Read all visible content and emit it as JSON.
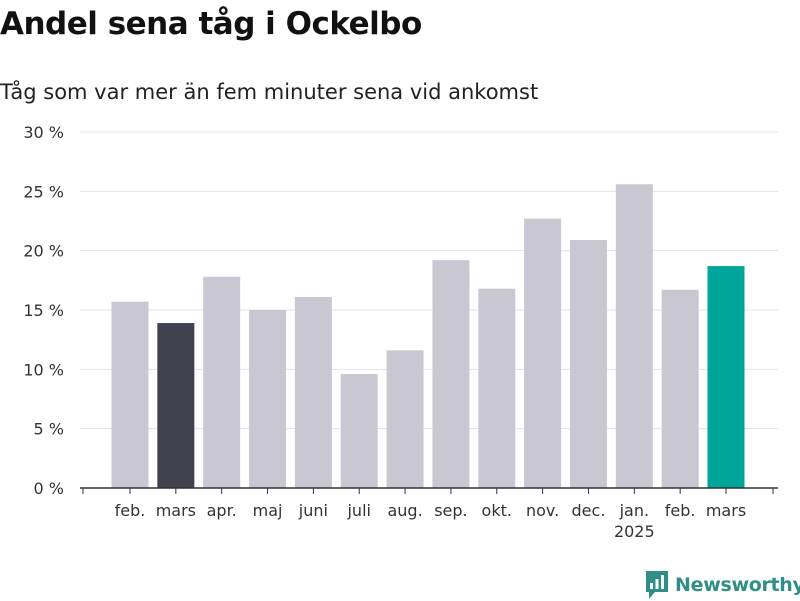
{
  "header": {
    "title": "Andel sena tåg i Ockelbo",
    "subtitle": "Tåg som var mer än fem minuter sena vid ankomst"
  },
  "logo": {
    "text": "Newsworthy",
    "icon": "bar-chart-logo-icon"
  },
  "colors": {
    "default": "#c9c8d2",
    "previous_year": "#41404e",
    "current": "#00a59a",
    "grid": "#e3e3e3",
    "axis": "#333333"
  },
  "chart_data": {
    "type": "bar",
    "categories": [
      "feb.",
      "mars",
      "apr.",
      "maj",
      "juni",
      "juli",
      "aug.",
      "sep.",
      "okt.",
      "nov.",
      "dec.",
      "jan.",
      "feb.",
      "mars"
    ],
    "year_labels": [
      "",
      "",
      "",
      "",
      "",
      "",
      "",
      "",
      "",
      "",
      "",
      "2025",
      "",
      ""
    ],
    "values": [
      15.7,
      13.9,
      17.8,
      15.0,
      16.1,
      9.6,
      11.6,
      19.2,
      16.8,
      22.7,
      20.9,
      25.6,
      16.7,
      18.7
    ],
    "highlight": [
      "default",
      "previous_year",
      "default",
      "default",
      "default",
      "default",
      "default",
      "default",
      "default",
      "default",
      "default",
      "default",
      "default",
      "current"
    ],
    "yticks": [
      "0 %",
      "5 %",
      "10 %",
      "15 %",
      "20 %",
      "25 %",
      "30 %"
    ],
    "ylim": [
      0,
      30
    ],
    "grid": true
  }
}
